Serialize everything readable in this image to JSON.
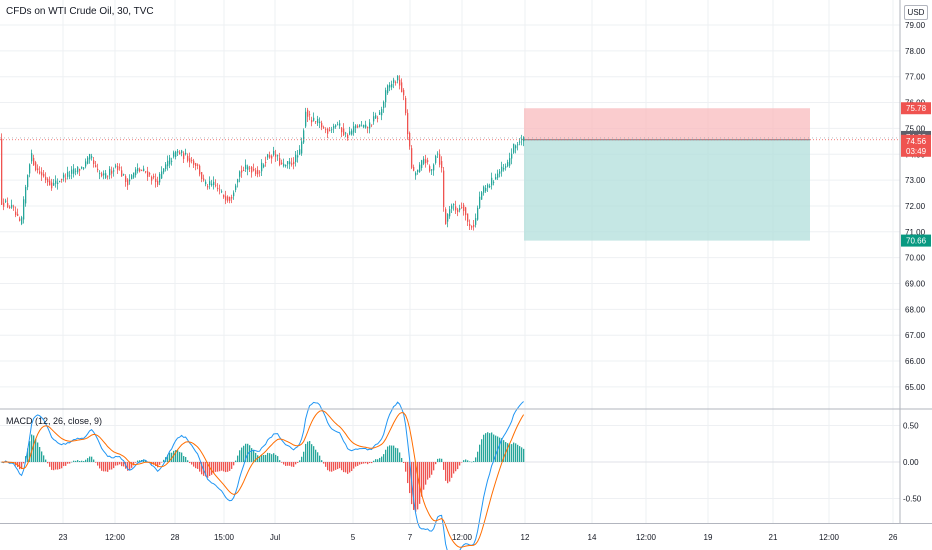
{
  "header": {
    "title": "CFDs on WTI Crude Oil, 30, TVC",
    "currency": "USD",
    "indicator": "MACD (12, 26, close, 9)"
  },
  "colors": {
    "up": "#26a69a",
    "down": "#ef5350",
    "macd_line": "#2196f3",
    "signal_line": "#ff6d00",
    "stop_zone": "#f8bbbd",
    "target_zone": "#b2dfdb"
  },
  "chart_data": [
    {
      "type": "candlestick",
      "title": "",
      "ylim": [
        64.3,
        79.6
      ],
      "y_ticks": [
        "79.00",
        "78.00",
        "77.00",
        "76.00",
        "75.00",
        "74.00",
        "73.00",
        "72.00",
        "71.00",
        "70.00",
        "69.00",
        "68.00",
        "67.00",
        "66.00",
        "65.00"
      ],
      "x_ticks": [
        "23",
        "12:00",
        "28",
        "15:00",
        "Jul",
        "5",
        "7",
        "12:00",
        "12",
        "14",
        "12:00",
        "19",
        "21",
        "12:00",
        "26"
      ],
      "price_path": [
        [
          0,
          72.2
        ],
        [
          12,
          71.9
        ],
        [
          20,
          71.2
        ],
        [
          26,
          73.0
        ],
        [
          30,
          74.0
        ],
        [
          36,
          73.4
        ],
        [
          44,
          73.1
        ],
        [
          52,
          72.8
        ],
        [
          62,
          73.1
        ],
        [
          72,
          73.3
        ],
        [
          82,
          73.5
        ],
        [
          90,
          73.9
        ],
        [
          96,
          73.3
        ],
        [
          104,
          73.1
        ],
        [
          116,
          73.6
        ],
        [
          126,
          72.9
        ],
        [
          136,
          73.4
        ],
        [
          146,
          73.3
        ],
        [
          156,
          72.9
        ],
        [
          166,
          73.6
        ],
        [
          176,
          74.1
        ],
        [
          186,
          73.9
        ],
        [
          196,
          73.6
        ],
        [
          204,
          72.8
        ],
        [
          214,
          72.8
        ],
        [
          222,
          72.4
        ],
        [
          230,
          72.3
        ],
        [
          238,
          73.3
        ],
        [
          248,
          73.5
        ],
        [
          258,
          73.3
        ],
        [
          266,
          73.9
        ],
        [
          274,
          74.0
        ],
        [
          282,
          73.5
        ],
        [
          292,
          73.7
        ],
        [
          300,
          74.1
        ],
        [
          305,
          75.7
        ],
        [
          310,
          75.3
        ],
        [
          318,
          75.2
        ],
        [
          326,
          74.9
        ],
        [
          336,
          75.2
        ],
        [
          346,
          74.7
        ],
        [
          356,
          75.1
        ],
        [
          366,
          75.0
        ],
        [
          372,
          75.3
        ],
        [
          380,
          75.6
        ],
        [
          386,
          76.5
        ],
        [
          392,
          76.8
        ],
        [
          398,
          76.9
        ],
        [
          404,
          76.0
        ],
        [
          408,
          74.5
        ],
        [
          412,
          73.2
        ],
        [
          418,
          73.4
        ],
        [
          424,
          73.9
        ],
        [
          430,
          73.2
        ],
        [
          436,
          74.2
        ],
        [
          441,
          73.4
        ],
        [
          444,
          71.2
        ],
        [
          450,
          72.1
        ],
        [
          456,
          71.8
        ],
        [
          462,
          72.1
        ],
        [
          468,
          71.2
        ],
        [
          474,
          71.3
        ],
        [
          480,
          72.5
        ],
        [
          486,
          72.7
        ],
        [
          492,
          73.0
        ],
        [
          498,
          73.3
        ],
        [
          506,
          73.5
        ],
        [
          512,
          74.2
        ],
        [
          518,
          74.5
        ],
        [
          524,
          74.56
        ]
      ],
      "last_price": "74.56",
      "countdown": "03:49",
      "price_marker": "74.63",
      "stop_price": "75.78",
      "target_price": "70.66",
      "position": {
        "type": "short",
        "entry": 74.56,
        "stop": 75.78,
        "target": 70.66
      }
    },
    {
      "type": "macd",
      "title": "MACD (12, 26, close, 9)",
      "ylim": [
        -0.78,
        0.6
      ],
      "y_ticks": [
        "0.50",
        "0.00",
        "-0.50"
      ]
    }
  ]
}
